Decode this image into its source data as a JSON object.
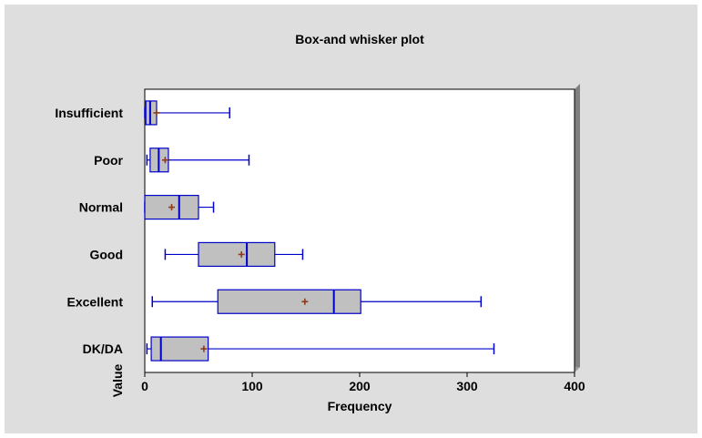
{
  "chart_data": {
    "type": "box",
    "orientation": "horizontal",
    "title": "Box-and whisker plot",
    "xlabel": "Frequency",
    "ylabel": "Value",
    "xlim": [
      0,
      400
    ],
    "xticks": [
      0,
      100,
      200,
      300,
      400
    ],
    "categories": [
      "Insufficient",
      "Poor",
      "Normal",
      "Good",
      "Excellent",
      "DK/DA"
    ],
    "boxes": [
      {
        "category": "Insufficient",
        "min": 0,
        "q1": 1,
        "median": 5,
        "q3": 11,
        "max": 79,
        "mean": 11
      },
      {
        "category": "Poor",
        "min": 2,
        "q1": 5,
        "median": 13,
        "q3": 22,
        "max": 97,
        "mean": 19
      },
      {
        "category": "Normal",
        "min": 0,
        "q1": 0,
        "median": 32,
        "q3": 50,
        "max": 64,
        "mean": 25
      },
      {
        "category": "Good",
        "min": 19,
        "q1": 50,
        "median": 95,
        "q3": 121,
        "max": 147,
        "mean": 90
      },
      {
        "category": "Excellent",
        "min": 7,
        "q1": 68,
        "median": 176,
        "q3": 201,
        "max": 313,
        "mean": 149
      },
      {
        "category": "DK/DA",
        "min": 2,
        "q1": 6,
        "median": 15,
        "q3": 59,
        "max": 325,
        "mean": 55
      }
    ],
    "grid": false,
    "colors": {
      "panel": "#dedede",
      "box_fill": "#c0c0c0",
      "box_stroke": "#0000cc",
      "mean_marker": "#8b3a1a",
      "plot_bg": "#ffffff",
      "frame_shadow": "#808080"
    }
  }
}
